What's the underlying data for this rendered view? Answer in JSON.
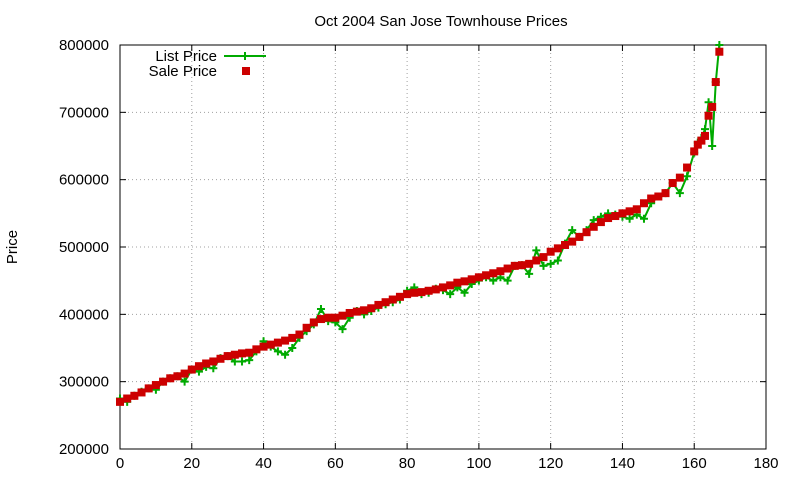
{
  "chart_data": {
    "type": "line",
    "title": "Oct 2004 San Jose Townhouse Prices",
    "xlabel": "",
    "ylabel": "Price",
    "xlim": [
      0,
      180
    ],
    "ylim": [
      200000,
      800000
    ],
    "x_ticks": [
      "0",
      "20",
      "40",
      "60",
      "80",
      "100",
      "120",
      "140",
      "160",
      "180"
    ],
    "y_ticks": [
      "200000",
      "300000",
      "400000",
      "500000",
      "600000",
      "700000",
      "800000"
    ],
    "grid": true,
    "legend_position": "top-left",
    "series": [
      {
        "name": "List Price",
        "style": "line-with-plus-markers",
        "color": "#00aa00",
        "points": [
          [
            0,
            275000
          ],
          [
            2,
            270000
          ],
          [
            4,
            279000
          ],
          [
            6,
            285000
          ],
          [
            8,
            290000
          ],
          [
            10,
            288000
          ],
          [
            12,
            300000
          ],
          [
            14,
            305000
          ],
          [
            16,
            308000
          ],
          [
            18,
            300000
          ],
          [
            20,
            318000
          ],
          [
            22,
            315000
          ],
          [
            24,
            322000
          ],
          [
            26,
            320000
          ],
          [
            28,
            335000
          ],
          [
            30,
            338000
          ],
          [
            32,
            330000
          ],
          [
            34,
            330000
          ],
          [
            36,
            332000
          ],
          [
            38,
            345000
          ],
          [
            40,
            360000
          ],
          [
            42,
            352000
          ],
          [
            44,
            345000
          ],
          [
            46,
            340000
          ],
          [
            48,
            350000
          ],
          [
            50,
            365000
          ],
          [
            52,
            375000
          ],
          [
            54,
            385000
          ],
          [
            56,
            408000
          ],
          [
            58,
            390000
          ],
          [
            60,
            388000
          ],
          [
            62,
            378000
          ],
          [
            64,
            395000
          ],
          [
            66,
            405000
          ],
          [
            68,
            400000
          ],
          [
            70,
            405000
          ],
          [
            72,
            410000
          ],
          [
            74,
            415000
          ],
          [
            76,
            418000
          ],
          [
            78,
            422000
          ],
          [
            80,
            435000
          ],
          [
            82,
            440000
          ],
          [
            84,
            430000
          ],
          [
            86,
            432000
          ],
          [
            88,
            438000
          ],
          [
            90,
            436000
          ],
          [
            92,
            430000
          ],
          [
            94,
            440000
          ],
          [
            96,
            432000
          ],
          [
            98,
            445000
          ],
          [
            100,
            450000
          ],
          [
            102,
            455000
          ],
          [
            104,
            450000
          ],
          [
            106,
            455000
          ],
          [
            108,
            450000
          ],
          [
            110,
            472000
          ],
          [
            112,
            473000
          ],
          [
            114,
            460000
          ],
          [
            116,
            495000
          ],
          [
            118,
            472000
          ],
          [
            120,
            475000
          ],
          [
            122,
            480000
          ],
          [
            124,
            505000
          ],
          [
            126,
            525000
          ],
          [
            128,
            515000
          ],
          [
            130,
            525000
          ],
          [
            132,
            540000
          ],
          [
            134,
            545000
          ],
          [
            136,
            550000
          ],
          [
            138,
            548000
          ],
          [
            140,
            545000
          ],
          [
            142,
            542000
          ],
          [
            144,
            548000
          ],
          [
            146,
            542000
          ],
          [
            148,
            565000
          ],
          [
            150,
            575000
          ],
          [
            152,
            580000
          ],
          [
            154,
            595000
          ],
          [
            156,
            580000
          ],
          [
            158,
            605000
          ],
          [
            160,
            640000
          ],
          [
            161,
            655000
          ],
          [
            162,
            662000
          ],
          [
            163,
            675000
          ],
          [
            164,
            715000
          ],
          [
            165,
            650000
          ],
          [
            166,
            745000
          ],
          [
            167,
            800000
          ]
        ]
      },
      {
        "name": "Sale Price",
        "style": "square-markers",
        "color": "#cc0000",
        "points": [
          [
            0,
            270000
          ],
          [
            2,
            275000
          ],
          [
            4,
            279000
          ],
          [
            6,
            284000
          ],
          [
            8,
            290000
          ],
          [
            10,
            295000
          ],
          [
            12,
            300000
          ],
          [
            14,
            305000
          ],
          [
            16,
            308000
          ],
          [
            18,
            312000
          ],
          [
            20,
            318000
          ],
          [
            22,
            323000
          ],
          [
            24,
            327000
          ],
          [
            26,
            330000
          ],
          [
            28,
            334000
          ],
          [
            30,
            338000
          ],
          [
            32,
            340000
          ],
          [
            34,
            342000
          ],
          [
            36,
            343000
          ],
          [
            38,
            348000
          ],
          [
            40,
            352000
          ],
          [
            42,
            355000
          ],
          [
            44,
            358000
          ],
          [
            46,
            361000
          ],
          [
            48,
            365000
          ],
          [
            50,
            370000
          ],
          [
            52,
            380000
          ],
          [
            54,
            388000
          ],
          [
            56,
            393000
          ],
          [
            58,
            395000
          ],
          [
            60,
            395000
          ],
          [
            62,
            398000
          ],
          [
            64,
            402000
          ],
          [
            66,
            404000
          ],
          [
            68,
            406000
          ],
          [
            70,
            409000
          ],
          [
            72,
            414000
          ],
          [
            74,
            418000
          ],
          [
            76,
            422000
          ],
          [
            78,
            426000
          ],
          [
            80,
            430000
          ],
          [
            82,
            432000
          ],
          [
            84,
            433000
          ],
          [
            86,
            435000
          ],
          [
            88,
            437000
          ],
          [
            90,
            440000
          ],
          [
            92,
            443000
          ],
          [
            94,
            447000
          ],
          [
            96,
            449000
          ],
          [
            98,
            452000
          ],
          [
            100,
            455000
          ],
          [
            102,
            458000
          ],
          [
            104,
            461000
          ],
          [
            106,
            464000
          ],
          [
            108,
            468000
          ],
          [
            110,
            472000
          ],
          [
            112,
            473000
          ],
          [
            114,
            475000
          ],
          [
            116,
            480000
          ],
          [
            118,
            485000
          ],
          [
            120,
            493000
          ],
          [
            122,
            498000
          ],
          [
            124,
            503000
          ],
          [
            126,
            508000
          ],
          [
            128,
            515000
          ],
          [
            130,
            522000
          ],
          [
            132,
            530000
          ],
          [
            134,
            537000
          ],
          [
            136,
            543000
          ],
          [
            138,
            546000
          ],
          [
            140,
            550000
          ],
          [
            142,
            553000
          ],
          [
            144,
            556000
          ],
          [
            146,
            565000
          ],
          [
            148,
            572000
          ],
          [
            150,
            575000
          ],
          [
            152,
            580000
          ],
          [
            154,
            595000
          ],
          [
            156,
            603000
          ],
          [
            158,
            618000
          ],
          [
            160,
            642000
          ],
          [
            161,
            652000
          ],
          [
            162,
            658000
          ],
          [
            163,
            665000
          ],
          [
            164,
            695000
          ],
          [
            165,
            708000
          ],
          [
            166,
            745000
          ],
          [
            167,
            790000
          ]
        ]
      }
    ]
  }
}
